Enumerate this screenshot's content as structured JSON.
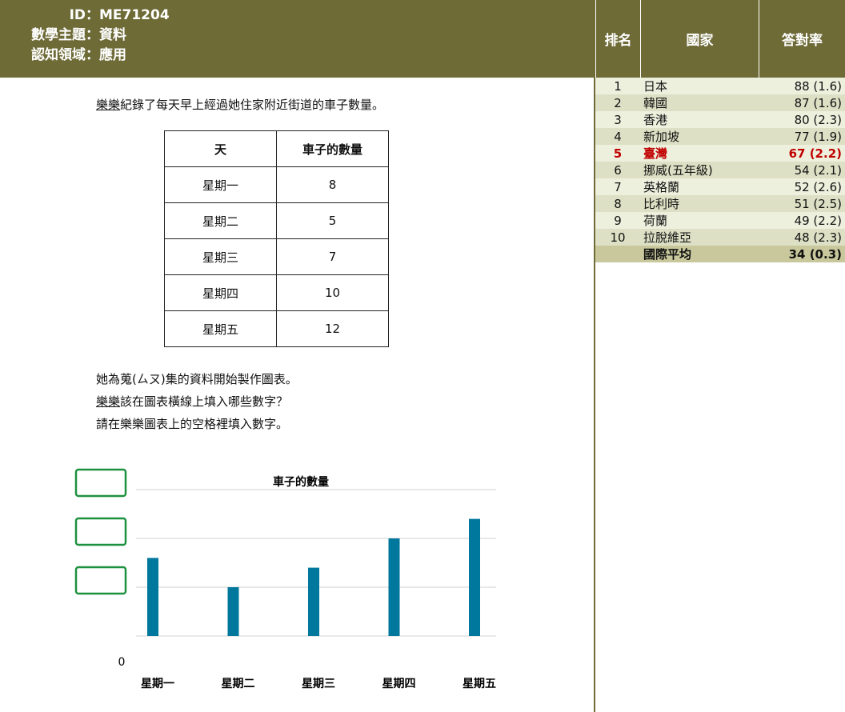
{
  "header": {
    "fields": [
      {
        "label": "ID：",
        "value": "ME71204"
      },
      {
        "label": "數學主題：",
        "value": "資料"
      },
      {
        "label": "認知領域：",
        "value": "應用"
      }
    ]
  },
  "intro": {
    "name": "樂樂",
    "text": "紀錄了每天早上經過她住家附近街道的車子數量。"
  },
  "table": {
    "header": [
      "天",
      "車子的數量"
    ],
    "rows": [
      [
        "星期一",
        "8"
      ],
      [
        "星期二",
        "5"
      ],
      [
        "星期三",
        "7"
      ],
      [
        "星期四",
        "10"
      ],
      [
        "星期五",
        "12"
      ]
    ]
  },
  "questions": [
    {
      "name": "",
      "text": "她為蒐(ㄙㄡ)集的資料開始製作圖表。"
    },
    {
      "name": "樂樂",
      "text": "該在圖表橫線上填入哪些數字？"
    },
    {
      "name": "",
      "text": "請在樂樂圖表上的空格裡填入數字。"
    }
  ],
  "chart_data": {
    "type": "bar",
    "title": "車子的數量",
    "categories": [
      "星期一",
      "星期二",
      "星期三",
      "星期四",
      "星期五"
    ],
    "values": [
      8,
      5,
      7,
      10,
      12
    ],
    "color": "#00789e",
    "ylim": [
      0,
      15
    ],
    "yticks": [
      0,
      {
        "value": 5,
        "label": null
      },
      {
        "value": 10,
        "label": null
      },
      {
        "value": 15,
        "label": null
      }
    ],
    "grid": true,
    "answer_box_color": "#1e9140"
  },
  "ranking": {
    "columns": [
      "排名",
      "國家",
      "答對率"
    ],
    "rows": [
      [
        "1",
        "日本",
        "88 (1.6)"
      ],
      [
        "2",
        "韓國",
        "87 (1.6)"
      ],
      [
        "3",
        "香港",
        "80 (2.3)"
      ],
      [
        "4",
        "新加坡",
        "77 (1.9)"
      ],
      [
        "5",
        "臺灣",
        "67 (2.2)"
      ],
      [
        "6",
        "挪威(五年級)",
        "54 (2.1)"
      ],
      [
        "7",
        "英格蘭",
        "52 (2.6)"
      ],
      [
        "8",
        "比利時",
        "51 (2.5)"
      ],
      [
        "9",
        "荷蘭",
        "49 (2.2)"
      ],
      [
        "10",
        "拉脫維亞",
        "48 (2.3)"
      ]
    ],
    "average": [
      "國際平均",
      "34 (0.3)"
    ],
    "highlight_row": 4,
    "highlight_color": "#c00000"
  }
}
